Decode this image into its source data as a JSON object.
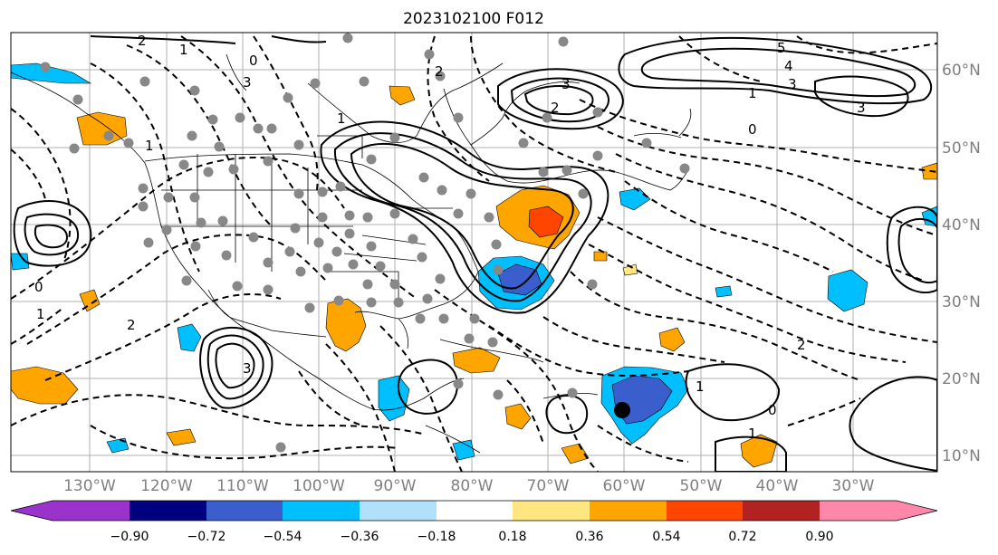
{
  "title": "2023102100 F012",
  "map": {
    "lat_labels": [
      "60°N",
      "50°N",
      "40°N",
      "30°N",
      "20°N",
      "10°N"
    ],
    "lon_labels": [
      "130°W",
      "120°W",
      "110°W",
      "100°W",
      "90°W",
      "80°W",
      "70°W",
      "60°W",
      "50°W",
      "40°W",
      "30°W"
    ],
    "contour_labels": [
      "2",
      "1",
      "0",
      "3",
      "5",
      "4",
      "3",
      "1",
      "3",
      "0",
      "2",
      "1",
      "2",
      "3",
      "1",
      "0",
      "1",
      "2",
      "3",
      "2",
      "1",
      "0",
      "1"
    ]
  },
  "colorbar": {
    "ticks": [
      "−0.90",
      "−0.72",
      "−0.54",
      "−0.36",
      "−0.18",
      "0.18",
      "0.36",
      "0.54",
      "0.72",
      "0.90"
    ],
    "colors": [
      "#9933cc",
      "#000080",
      "#3a5fcd",
      "#00bfff",
      "#b0e0fa",
      "#ffffff",
      "#ffe680",
      "#ffa500",
      "#ff4500",
      "#b22222",
      "#ff88aa"
    ]
  }
}
